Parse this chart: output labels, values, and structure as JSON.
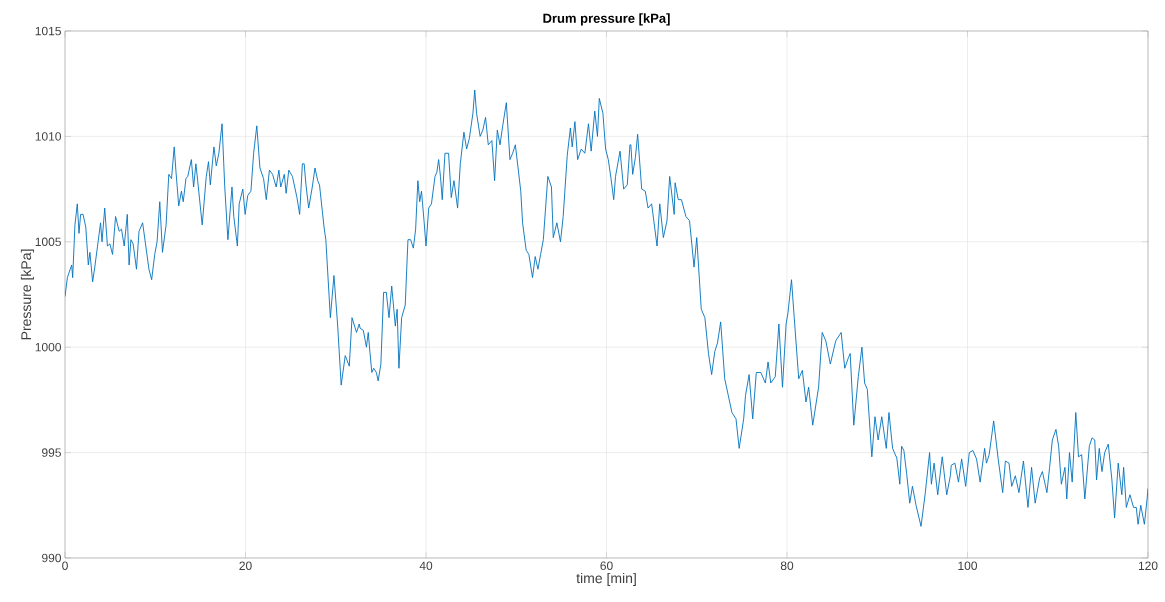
{
  "chart_data": {
    "type": "line",
    "title": "Drum pressure [kPa]",
    "xlabel": "time [min]",
    "ylabel": "Pressure [kPa]",
    "color": "#0072bd",
    "grid": true,
    "xlim": [
      0,
      120
    ],
    "ylim": [
      990,
      1015
    ],
    "xticks": [
      0,
      20,
      40,
      60,
      80,
      100,
      120
    ],
    "yticks": [
      990,
      995,
      1000,
      1005,
      1010,
      1015
    ],
    "x": [
      0,
      0.26,
      0.74,
      0.85,
      1.1,
      1.36,
      1.55,
      1.73,
      2.0,
      2.3,
      2.58,
      2.76,
      3.06,
      3.3,
      3.94,
      4.1,
      4.4,
      4.7,
      4.97,
      5.27,
      5.6,
      6.0,
      6.26,
      6.56,
      6.9,
      7.1,
      7.3,
      7.55,
      7.92,
      8.2,
      8.6,
      8.95,
      9.3,
      9.6,
      9.94,
      10.2,
      10.5,
      10.8,
      11.2,
      11.5,
      11.8,
      12.1,
      12.3,
      12.6,
      12.9,
      13.1,
      13.4,
      13.6,
      14.0,
      14.25,
      14.5,
      14.7,
      15.2,
      15.65,
      15.9,
      16.1,
      16.5,
      16.76,
      17.05,
      17.4,
      17.7,
      18.05,
      18.5,
      18.7,
      19.1,
      19.3,
      19.7,
      19.96,
      20.25,
      20.6,
      20.9,
      21.25,
      21.6,
      22.0,
      22.3,
      22.65,
      23.0,
      23.4,
      23.7,
      23.9,
      24.3,
      24.5,
      24.8,
      25.2,
      25.7,
      26.0,
      26.3,
      26.5,
      26.7,
      27.0,
      27.4,
      27.7,
      28.0,
      28.2,
      28.5,
      28.7,
      28.9,
      29.4,
      29.8,
      30.2,
      30.6,
      31.05,
      31.5,
      31.8,
      32.3,
      32.6,
      32.7,
      33.05,
      33.4,
      33.6,
      33.8,
      34.0,
      34.2,
      34.5,
      34.7,
      35.0,
      35.3,
      35.6,
      35.9,
      36.2,
      36.6,
      36.8,
      37.0,
      37.3,
      37.7,
      38.0,
      38.3,
      38.6,
      38.85,
      39.1,
      39.3,
      39.5,
      39.8,
      40.0,
      40.3,
      40.6,
      41.0,
      41.2,
      41.4,
      41.6,
      41.8,
      42.1,
      42.5,
      42.8,
      43.1,
      43.5,
      43.8,
      44.2,
      44.5,
      44.8,
      45.2,
      45.4,
      45.6,
      46.0,
      46.3,
      46.6,
      46.9,
      47.3,
      47.6,
      47.9,
      48.2,
      48.5,
      48.9,
      49.3,
      49.6,
      49.9,
      50.2,
      50.5,
      50.7,
      51.1,
      51.4,
      51.8,
      52.1,
      52.4,
      52.7,
      53.0,
      53.5,
      53.9,
      54.1,
      54.5,
      54.9,
      55.2,
      55.65,
      56.0,
      56.2,
      56.5,
      56.8,
      57.2,
      57.6,
      58.0,
      58.3,
      58.7,
      59.0,
      59.2,
      59.6,
      59.9,
      60.2,
      60.5,
      60.8,
      61.0,
      61.5,
      61.9,
      62.3,
      62.6,
      62.7,
      62.9,
      63.2,
      63.45,
      63.9,
      64.3,
      64.6,
      65.0,
      65.6,
      65.9,
      66.3,
      66.7,
      67.0,
      67.5,
      67.6,
      67.95,
      68.3,
      68.8,
      69.2,
      69.7,
      70.0,
      70.5,
      70.9,
      71.3,
      71.65,
      72.0,
      72.3,
      72.65,
      73.1,
      73.5,
      73.9,
      74.35,
      74.7,
      75.2,
      75.4,
      75.8,
      76.2,
      76.6,
      77.1,
      77.6,
      77.9,
      78.2,
      78.7,
      79.1,
      79.5,
      79.9,
      80.1,
      80.5,
      80.8,
      81.3,
      81.7,
      82.1,
      82.4,
      82.85,
      83.5,
      83.9,
      84.3,
      84.8,
      85.4,
      86.0,
      86.4,
      86.8,
      87.0,
      87.4,
      87.9,
      88.3,
      88.6,
      88.9,
      89.4,
      89.75,
      90.1,
      90.5,
      91.0,
      91.3,
      91.7,
      92.1,
      92.15,
      92.5,
      92.7,
      92.95,
      93.26,
      93.6,
      93.9,
      94.3,
      94.85,
      95.3,
      95.8,
      96.0,
      96.3,
      96.7,
      97.2,
      97.7,
      98.1,
      98.2,
      98.6,
      99.0,
      99.35,
      99.8,
      100.2,
      100.6,
      101.0,
      101.4,
      101.9,
      102.1,
      102.4,
      102.9,
      103.4,
      103.9,
      104.2,
      104.6,
      104.9,
      105.3,
      105.7,
      106.2,
      106.7,
      107.1,
      107.5,
      108.0,
      108.3,
      108.8,
      109.1,
      109.4,
      109.8,
      110.1,
      110.4,
      110.8,
      111.0,
      111.3,
      111.6,
      112.0,
      112.3,
      112.65,
      113.0,
      113.5,
      113.8,
      114.1,
      114.3,
      114.6,
      114.9,
      115.2,
      115.6,
      116.0,
      116.3,
      116.7,
      117.1,
      117.3,
      117.6,
      118.0,
      118.4,
      118.7,
      118.9,
      119.2,
      119.6,
      119.9,
      120.0
    ],
    "values": [
      1002.4,
      1003.3,
      1003.9,
      1003.3,
      1005.8,
      1006.8,
      1005.4,
      1006.3,
      1006.3,
      1005.7,
      1003.9,
      1004.5,
      1003.1,
      1003.8,
      1005.9,
      1005.0,
      1006.6,
      1004.8,
      1004.9,
      1004.4,
      1006.2,
      1005.5,
      1005.6,
      1004.8,
      1006.3,
      1003.9,
      1005.1,
      1004.9,
      1003.7,
      1005.5,
      1005.9,
      1004.8,
      1003.7,
      1003.2,
      1004.4,
      1005.0,
      1006.9,
      1004.5,
      1005.8,
      1008.2,
      1008.0,
      1009.5,
      1008.3,
      1006.7,
      1007.4,
      1006.9,
      1008.0,
      1008.1,
      1008.9,
      1007.6,
      1008.7,
      1007.9,
      1005.8,
      1008.1,
      1008.8,
      1007.7,
      1009.5,
      1008.6,
      1009.2,
      1010.6,
      1007.6,
      1005.1,
      1007.6,
      1006.2,
      1004.8,
      1006.8,
      1007.5,
      1006.3,
      1007.2,
      1007.4,
      1009.2,
      1010.5,
      1008.5,
      1008.0,
      1007.0,
      1008.4,
      1008.2,
      1007.6,
      1008.4,
      1007.6,
      1008.2,
      1007.3,
      1008.4,
      1008.1,
      1007.1,
      1006.3,
      1008.7,
      1008.7,
      1007.7,
      1006.6,
      1007.6,
      1008.5,
      1007.9,
      1007.7,
      1006.5,
      1005.7,
      1005.1,
      1001.4,
      1003.4,
      1001.1,
      998.2,
      999.6,
      999.1,
      1001.4,
      1000.7,
      1001.1,
      1000.9,
      1000.8,
      1000.0,
      1000.7,
      999.7,
      998.8,
      999.0,
      998.8,
      998.4,
      999.2,
      1002.6,
      1002.6,
      1001.4,
      1002.9,
      1001.0,
      1001.8,
      999.0,
      1001.4,
      1002.0,
      1005.1,
      1005.1,
      1004.7,
      1005.6,
      1007.9,
      1006.9,
      1007.4,
      1005.9,
      1004.8,
      1006.6,
      1006.8,
      1008.1,
      1008.3,
      1008.9,
      1008.1,
      1007.0,
      1009.2,
      1009.2,
      1007.1,
      1007.9,
      1006.6,
      1008.7,
      1010.2,
      1009.4,
      1009.9,
      1011.1,
      1012.2,
      1011.1,
      1010.0,
      1010.3,
      1010.9,
      1009.6,
      1009.8,
      1007.9,
      1010.3,
      1009.6,
      1010.5,
      1011.6,
      1008.9,
      1009.2,
      1009.6,
      1008.5,
      1007.4,
      1005.9,
      1004.6,
      1004.4,
      1003.3,
      1004.3,
      1003.7,
      1004.4,
      1005.1,
      1008.1,
      1007.6,
      1005.2,
      1005.9,
      1005.0,
      1006.2,
      1009.1,
      1010.4,
      1009.5,
      1010.7,
      1008.9,
      1009.4,
      1009.2,
      1010.6,
      1009.3,
      1011.2,
      1010.0,
      1011.8,
      1011.1,
      1009.4,
      1008.9,
      1008.0,
      1007.0,
      1008.1,
      1009.3,
      1007.5,
      1007.7,
      1009.6,
      1009.6,
      1008.2,
      1009.0,
      1010.1,
      1007.5,
      1007.4,
      1006.6,
      1006.8,
      1004.8,
      1006.8,
      1005.2,
      1006.0,
      1008.1,
      1006.3,
      1007.8,
      1007.0,
      1007.0,
      1006.2,
      1006.0,
      1003.8,
      1005.2,
      1001.8,
      1001.4,
      999.7,
      998.7,
      999.8,
      1000.2,
      1001.2,
      998.5,
      997.7,
      996.9,
      996.6,
      995.2,
      996.6,
      997.7,
      998.7,
      996.6,
      998.8,
      998.8,
      998.3,
      999.3,
      998.3,
      998.6,
      1001.1,
      998.1,
      1001.1,
      1001.6,
      1003.2,
      1001.4,
      998.5,
      998.9,
      997.4,
      998.1,
      996.3,
      998.1,
      1000.7,
      1000.3,
      999.2,
      1000.3,
      1000.7,
      999.0,
      999.5,
      999.7,
      996.3,
      998.6,
      1000.0,
      998.3,
      998.0,
      994.8,
      996.7,
      995.6,
      996.7,
      995.2,
      996.9,
      995.2,
      994.8,
      994.8,
      993.5,
      995.3,
      995.1,
      994.0,
      992.6,
      993.4,
      992.5,
      991.5,
      993.0,
      995.0,
      993.5,
      994.5,
      993.0,
      994.8,
      993.0,
      993.9,
      994.4,
      994.5,
      993.6,
      994.7,
      993.4,
      995.0,
      995.1,
      994.7,
      993.6,
      995.2,
      994.5,
      994.9,
      996.5,
      994.7,
      993.1,
      994.6,
      994.5,
      993.4,
      993.9,
      993.1,
      994.6,
      992.4,
      994.3,
      992.6,
      993.8,
      994.1,
      993.1,
      994.3,
      995.6,
      996.1,
      995.3,
      993.5,
      994.3,
      992.8,
      995.0,
      993.6,
      996.9,
      994.8,
      994.9,
      992.8,
      995.3,
      995.7,
      995.6,
      993.7,
      995.2,
      994.1,
      995.0,
      995.4,
      993.7,
      991.9,
      994.5,
      993.0,
      994.3,
      992.4,
      993.0,
      992.4,
      992.4,
      991.6,
      992.5,
      991.6,
      992.8,
      993.3
    ]
  }
}
